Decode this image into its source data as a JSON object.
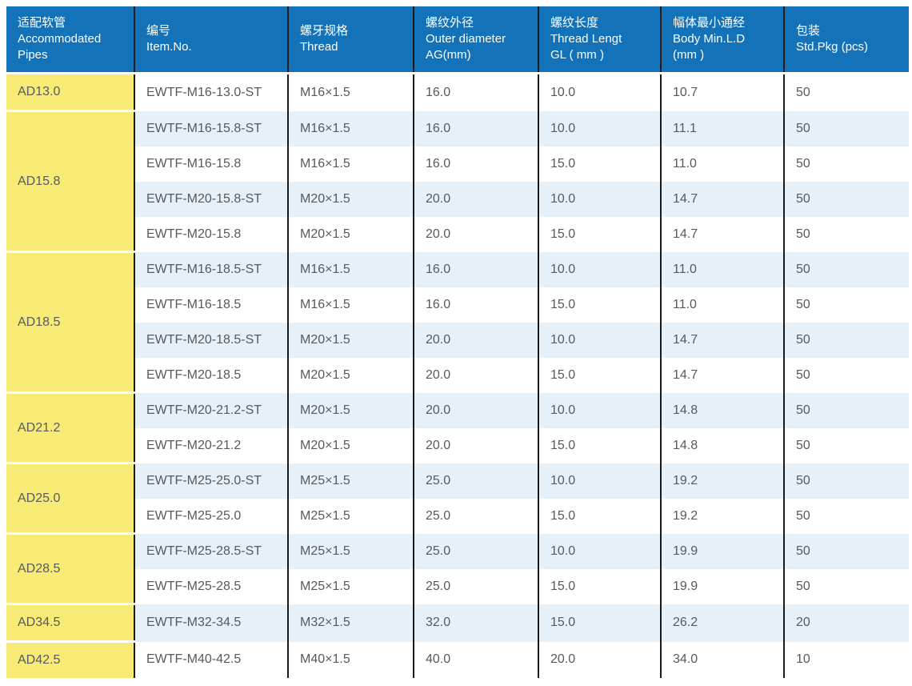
{
  "colors": {
    "header_bg": "#1473B8",
    "header_text": "#FFFFFF",
    "pipe_col_bg": "#F7EB75",
    "row_alt_bg": "#E6F0F8",
    "row_bg": "#FFFFFF",
    "divider": "#1A1A1A",
    "text": "#58595B"
  },
  "table": {
    "columns": [
      {
        "key": "pipes",
        "lines": [
          "适配软管",
          "Accommodated",
          "Pipes"
        ]
      },
      {
        "key": "item_no",
        "lines": [
          "编号",
          "Item.No."
        ]
      },
      {
        "key": "thread",
        "lines": [
          "螺牙规格",
          "Thread"
        ]
      },
      {
        "key": "outer_diameter",
        "lines": [
          "螺纹外径",
          "Outer diameter",
          "AG(mm)"
        ]
      },
      {
        "key": "thread_length",
        "lines": [
          "螺纹长度",
          "Thread Lengt",
          "GL ( mm )"
        ]
      },
      {
        "key": "body_min_id",
        "lines": [
          "幅体最小通经",
          "Body Min.L.D",
          "(mm )"
        ]
      },
      {
        "key": "std_pkg",
        "lines": [
          "包装",
          "Std.Pkg (pcs)"
        ]
      }
    ],
    "groups": [
      {
        "pipe": "AD13.0",
        "rows": [
          {
            "item_no": "EWTF-M16-13.0-ST",
            "thread": "M16×1.5",
            "outer_diameter": "16.0",
            "thread_length": "10.0",
            "body_min_id": "10.7",
            "std_pkg": "50"
          }
        ]
      },
      {
        "pipe": "AD15.8",
        "rows": [
          {
            "item_no": "EWTF-M16-15.8-ST",
            "thread": "M16×1.5",
            "outer_diameter": "16.0",
            "thread_length": "10.0",
            "body_min_id": "11.1",
            "std_pkg": "50"
          },
          {
            "item_no": "EWTF-M16-15.8",
            "thread": "M16×1.5",
            "outer_diameter": "16.0",
            "thread_length": "15.0",
            "body_min_id": "11.0",
            "std_pkg": "50"
          },
          {
            "item_no": "EWTF-M20-15.8-ST",
            "thread": "M20×1.5",
            "outer_diameter": "20.0",
            "thread_length": "10.0",
            "body_min_id": "14.7",
            "std_pkg": "50"
          },
          {
            "item_no": "EWTF-M20-15.8",
            "thread": "M20×1.5",
            "outer_diameter": "20.0",
            "thread_length": "15.0",
            "body_min_id": "14.7",
            "std_pkg": "50"
          }
        ]
      },
      {
        "pipe": "AD18.5",
        "rows": [
          {
            "item_no": "EWTF-M16-18.5-ST",
            "thread": "M16×1.5",
            "outer_diameter": "16.0",
            "thread_length": "10.0",
            "body_min_id": "11.0",
            "std_pkg": "50"
          },
          {
            "item_no": "EWTF-M16-18.5",
            "thread": "M16×1.5",
            "outer_diameter": "16.0",
            "thread_length": "15.0",
            "body_min_id": "11.0",
            "std_pkg": "50"
          },
          {
            "item_no": "EWTF-M20-18.5-ST",
            "thread": "M20×1.5",
            "outer_diameter": "20.0",
            "thread_length": "10.0",
            "body_min_id": "14.7",
            "std_pkg": "50"
          },
          {
            "item_no": "EWTF-M20-18.5",
            "thread": "M20×1.5",
            "outer_diameter": "20.0",
            "thread_length": "15.0",
            "body_min_id": "14.7",
            "std_pkg": "50"
          }
        ]
      },
      {
        "pipe": "AD21.2",
        "rows": [
          {
            "item_no": "EWTF-M20-21.2-ST",
            "thread": "M20×1.5",
            "outer_diameter": "20.0",
            "thread_length": "10.0",
            "body_min_id": "14.8",
            "std_pkg": "50"
          },
          {
            "item_no": "EWTF-M20-21.2",
            "thread": "M20×1.5",
            "outer_diameter": "20.0",
            "thread_length": "15.0",
            "body_min_id": "14.8",
            "std_pkg": "50"
          }
        ]
      },
      {
        "pipe": "AD25.0",
        "rows": [
          {
            "item_no": "EWTF-M25-25.0-ST",
            "thread": "M25×1.5",
            "outer_diameter": "25.0",
            "thread_length": "10.0",
            "body_min_id": "19.2",
            "std_pkg": "50"
          },
          {
            "item_no": "EWTF-M25-25.0",
            "thread": "M25×1.5",
            "outer_diameter": "25.0",
            "thread_length": "15.0",
            "body_min_id": "19.2",
            "std_pkg": "50"
          }
        ]
      },
      {
        "pipe": "AD28.5",
        "rows": [
          {
            "item_no": "EWTF-M25-28.5-ST",
            "thread": "M25×1.5",
            "outer_diameter": "25.0",
            "thread_length": "10.0",
            "body_min_id": "19.9",
            "std_pkg": "50"
          },
          {
            "item_no": "EWTF-M25-28.5",
            "thread": "M25×1.5",
            "outer_diameter": "25.0",
            "thread_length": "15.0",
            "body_min_id": "19.9",
            "std_pkg": "50"
          }
        ]
      },
      {
        "pipe": "AD34.5",
        "rows": [
          {
            "item_no": "EWTF-M32-34.5",
            "thread": "M32×1.5",
            "outer_diameter": "32.0",
            "thread_length": "15.0",
            "body_min_id": "26.2",
            "std_pkg": "20"
          }
        ]
      },
      {
        "pipe": "AD42.5",
        "rows": [
          {
            "item_no": "EWTF-M40-42.5",
            "thread": "M40×1.5",
            "outer_diameter": "40.0",
            "thread_length": "20.0",
            "body_min_id": "34.0",
            "std_pkg": "10"
          }
        ]
      }
    ]
  }
}
